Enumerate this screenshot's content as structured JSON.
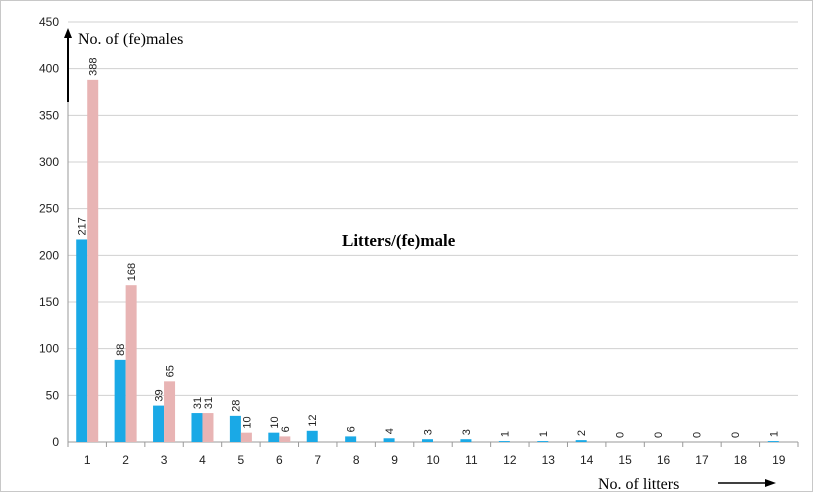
{
  "chart_data": {
    "type": "bar",
    "title": "Litters/(fe)male",
    "ylabel": "No. of (fe)males",
    "xlabel": "No. of litters",
    "categories": [
      "1",
      "2",
      "3",
      "4",
      "5",
      "6",
      "7",
      "8",
      "9",
      "10",
      "11",
      "12",
      "13",
      "14",
      "15",
      "16",
      "17",
      "18",
      "19"
    ],
    "series": [
      {
        "values": [
          217,
          88,
          39,
          31,
          28,
          10,
          12,
          6,
          4,
          3,
          3,
          1,
          1,
          2,
          0,
          0,
          0,
          0,
          1
        ],
        "color": "#1aa9e6"
      },
      {
        "values": [
          388,
          168,
          65,
          31,
          10,
          6,
          null,
          null,
          null,
          null,
          null,
          null,
          null,
          null,
          null,
          null,
          null,
          null,
          null
        ],
        "color": "#e8b4b4"
      }
    ],
    "ylim": [
      0,
      450
    ],
    "yticks": [
      0,
      50,
      100,
      150,
      200,
      250,
      300,
      350,
      400,
      450
    ],
    "grid": true
  }
}
